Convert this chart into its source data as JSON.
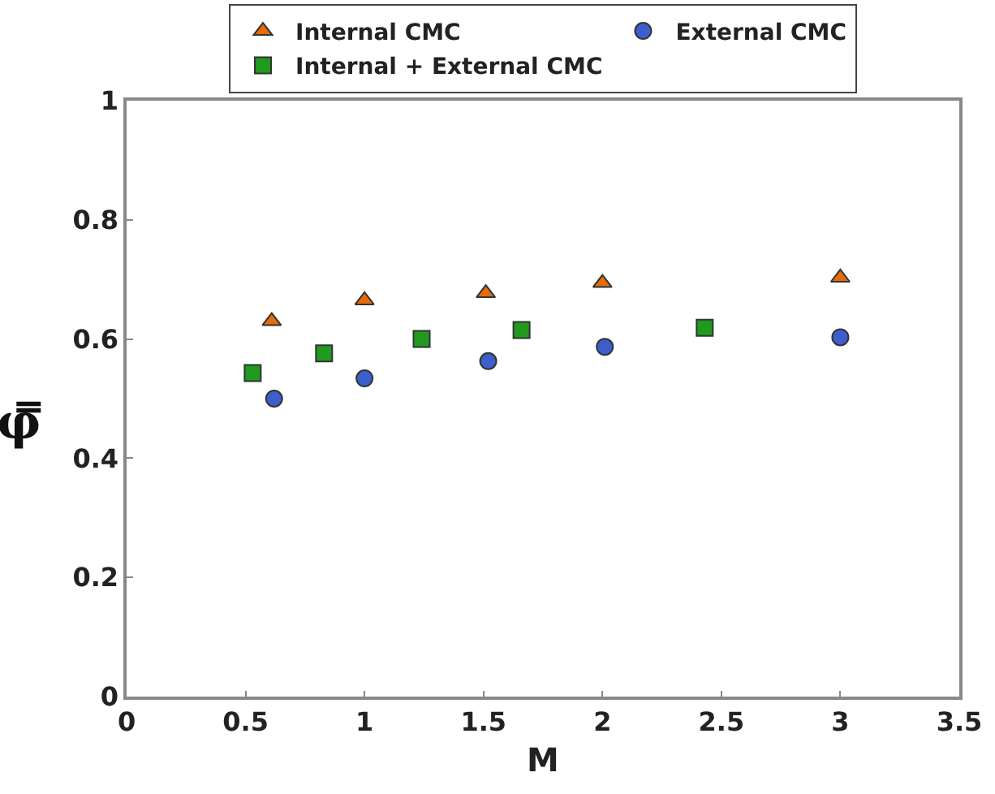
{
  "chart_data": {
    "type": "scatter",
    "xlabel": "M",
    "ylabel": "φ̿",
    "xlim": [
      0,
      3.5
    ],
    "xticks": [
      0,
      0.5,
      1,
      1.5,
      2,
      2.5,
      3,
      3.5
    ],
    "ylim": [
      0,
      1
    ],
    "yticks": [
      0,
      0.2,
      0.4,
      0.6,
      0.8,
      1
    ],
    "grid": false,
    "legend": "top",
    "series": [
      {
        "name": "Internal CMC",
        "color": "#e46c0a",
        "marker": "triangle",
        "x": [
          0.61,
          1.0,
          1.51,
          2.0,
          3.0
        ],
        "values": [
          0.63,
          0.665,
          0.677,
          0.694,
          0.703
        ]
      },
      {
        "name": "External CMC",
        "color": "#3c5fcd",
        "marker": "circle",
        "x": [
          0.62,
          1.0,
          1.52,
          2.01,
          3.0
        ],
        "values": [
          0.5,
          0.534,
          0.563,
          0.587,
          0.603
        ]
      },
      {
        "name": "Internal + External CMC",
        "color": "#1f9a1f",
        "marker": "square",
        "x": [
          0.53,
          0.83,
          1.24,
          1.66,
          2.43
        ],
        "values": [
          0.543,
          0.576,
          0.6,
          0.615,
          0.619
        ]
      }
    ]
  }
}
